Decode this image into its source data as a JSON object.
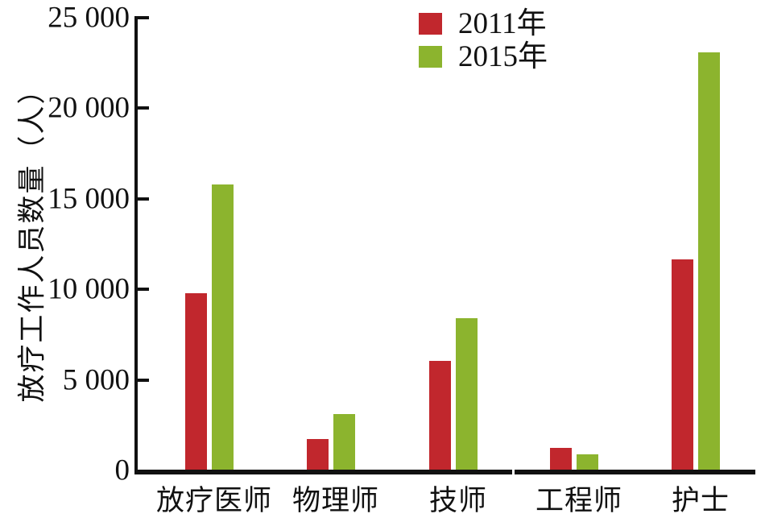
{
  "chart_data": {
    "type": "bar",
    "title": "",
    "xlabel": "",
    "ylabel": "放疗工作人员数量（人）",
    "categories": [
      "放疗医师",
      "物理师",
      "技师",
      "工程师",
      "护士"
    ],
    "series": [
      {
        "name": "2011年",
        "color": "#c1272d",
        "values": [
          9800,
          1750,
          6050,
          1250,
          11650
        ]
      },
      {
        "name": "2015年",
        "color": "#8cb42e",
        "values": [
          15800,
          3100,
          8400,
          900,
          23100
        ]
      }
    ],
    "ylim": [
      0,
      25000
    ],
    "yticks": [
      0,
      5000,
      10000,
      15000,
      20000,
      25000
    ],
    "ytick_labels": [
      "0",
      "5 000",
      "10 000",
      "15 000",
      "20 000",
      "25 000"
    ],
    "legend_position": "top-center",
    "grid": false,
    "axis_color": "#111111"
  }
}
